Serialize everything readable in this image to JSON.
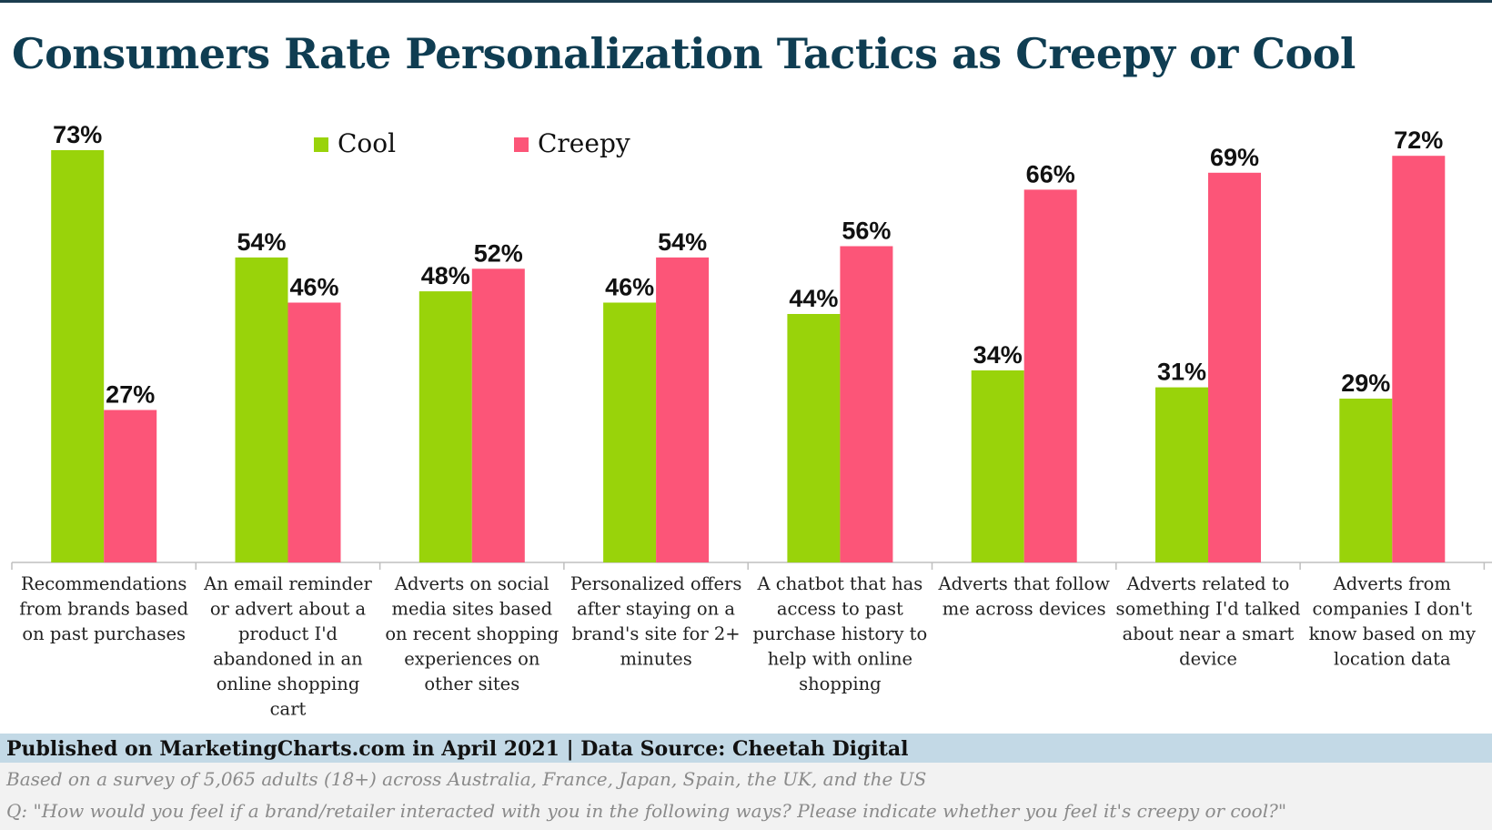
{
  "title": "Consumers Rate Personalization Tactics as Creepy or Cool",
  "footer": {
    "published": "Published on MarketingCharts.com in April 2021 | Data Source: Cheetah Digital",
    "note1": "Based on a survey of 5,065 adults (18+) across Australia, France, Japan, Spain, the UK, and the US",
    "note2": "Q: \"How would you feel if a brand/retailer interacted with you in the following ways? Please indicate whether you feel it's creepy or cool?\""
  },
  "chart_data": {
    "type": "bar",
    "categories": [
      "Recommendations from brands based on past purchases",
      "An email reminder or advert about a product I'd abandoned in an online shopping cart",
      "Adverts on social media sites based on recent shopping experiences on other sites",
      "Personalized offers after staying on a brand's site for 2+ minutes",
      "A chatbot that has access to past purchase history to help with online shopping",
      "Adverts that follow me across devices",
      "Adverts related to something I'd talked about near a smart device",
      "Adverts from companies I don't know based on my location data"
    ],
    "category_lines": [
      [
        "Recommendations",
        "from brands based",
        "on past purchases"
      ],
      [
        "An email reminder",
        "or advert about a",
        "product I'd",
        "abandoned in an",
        "online shopping",
        "cart"
      ],
      [
        "Adverts on social",
        "media sites based",
        "on recent shopping",
        "experiences on",
        "other sites"
      ],
      [
        "Personalized offers",
        "after staying on a",
        "brand's site for 2+",
        "minutes"
      ],
      [
        "A chatbot that has",
        "access to past",
        "purchase history to",
        "help with online",
        "shopping"
      ],
      [
        "Adverts that follow",
        "me across devices"
      ],
      [
        "Adverts related to",
        "something I'd talked",
        "about near a smart",
        "device"
      ],
      [
        "Adverts from",
        "companies I don't",
        "know based on my",
        "location data"
      ]
    ],
    "series": [
      {
        "name": "Cool",
        "color": "#99d30a",
        "values": [
          73,
          54,
          48,
          46,
          44,
          34,
          31,
          29
        ],
        "labels": [
          "73%",
          "54%",
          "48%",
          "46%",
          "44%",
          "34%",
          "31%",
          "29%"
        ]
      },
      {
        "name": "Creepy",
        "color": "#fc5578",
        "values": [
          27,
          46,
          52,
          54,
          56,
          66,
          69,
          72
        ],
        "labels": [
          "27%",
          "46%",
          "52%",
          "54%",
          "56%",
          "66%",
          "69%",
          "72%"
        ]
      }
    ],
    "ylim": [
      0,
      73
    ],
    "legend": "top-left",
    "grid": false
  }
}
